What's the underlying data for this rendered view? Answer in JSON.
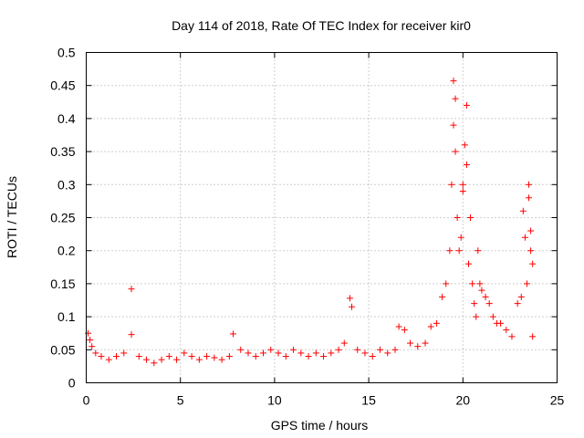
{
  "chart_data": {
    "type": "scatter",
    "title": "Day 114 of 2018, Rate Of TEC Index for receiver kir0",
    "xlabel": "GPS time / hours",
    "ylabel": "ROTI / TECUs",
    "xlim": [
      0,
      25
    ],
    "ylim": [
      0,
      0.5
    ],
    "xticks": [
      0,
      5,
      10,
      15,
      20,
      25
    ],
    "yticks": [
      0,
      0.05,
      0.1,
      0.15,
      0.2,
      0.25,
      0.3,
      0.35,
      0.4,
      0.45,
      0.5
    ],
    "xtick_labels": [
      "0",
      "5",
      "10",
      "15",
      "20",
      "25"
    ],
    "ytick_labels": [
      "0",
      "0.05",
      "0.1",
      "0.15",
      "0.2",
      "0.25",
      "0.3",
      "0.35",
      "0.4",
      "0.45",
      "0.5"
    ],
    "grid": true,
    "marker": "+",
    "color": "#ff0000",
    "series": [
      {
        "name": "ROTI",
        "x": [
          0.1,
          0.2,
          0.3,
          0.5,
          0.8,
          1.2,
          1.6,
          2.0,
          2.4,
          2.4,
          2.8,
          3.2,
          3.6,
          4.0,
          4.4,
          4.8,
          5.2,
          5.6,
          6.0,
          6.4,
          6.8,
          7.2,
          7.6,
          7.8,
          8.2,
          8.6,
          9.0,
          9.4,
          9.8,
          10.2,
          10.6,
          11.0,
          11.4,
          11.8,
          12.2,
          12.6,
          13.0,
          13.4,
          13.7,
          14.0,
          14.1,
          14.4,
          14.8,
          15.2,
          15.6,
          16.0,
          16.4,
          16.6,
          16.9,
          17.2,
          17.6,
          18.0,
          18.3,
          18.6,
          18.9,
          19.1,
          19.3,
          19.4,
          19.5,
          19.5,
          19.6,
          19.6,
          19.7,
          19.8,
          19.9,
          20.0,
          20.0,
          20.1,
          20.2,
          20.2,
          20.3,
          20.4,
          20.5,
          20.6,
          20.7,
          20.8,
          20.9,
          21.0,
          21.2,
          21.4,
          21.6,
          21.8,
          22.0,
          22.3,
          22.6,
          22.9,
          23.1,
          23.2,
          23.3,
          23.4,
          23.5,
          23.5,
          23.6,
          23.6,
          23.7,
          23.7
        ],
        "values": [
          0.075,
          0.065,
          0.055,
          0.045,
          0.04,
          0.035,
          0.04,
          0.045,
          0.142,
          0.073,
          0.04,
          0.035,
          0.03,
          0.035,
          0.04,
          0.035,
          0.045,
          0.04,
          0.035,
          0.04,
          0.038,
          0.035,
          0.04,
          0.074,
          0.05,
          0.045,
          0.04,
          0.045,
          0.05,
          0.045,
          0.04,
          0.05,
          0.045,
          0.04,
          0.045,
          0.04,
          0.045,
          0.05,
          0.06,
          0.128,
          0.115,
          0.05,
          0.045,
          0.04,
          0.05,
          0.045,
          0.05,
          0.085,
          0.08,
          0.06,
          0.055,
          0.06,
          0.085,
          0.09,
          0.13,
          0.15,
          0.2,
          0.3,
          0.39,
          0.457,
          0.43,
          0.35,
          0.25,
          0.2,
          0.22,
          0.29,
          0.3,
          0.36,
          0.42,
          0.33,
          0.18,
          0.25,
          0.15,
          0.12,
          0.1,
          0.2,
          0.15,
          0.14,
          0.13,
          0.12,
          0.1,
          0.09,
          0.09,
          0.08,
          0.07,
          0.12,
          0.13,
          0.26,
          0.22,
          0.15,
          0.3,
          0.28,
          0.23,
          0.2,
          0.18,
          0.07
        ]
      }
    ]
  }
}
